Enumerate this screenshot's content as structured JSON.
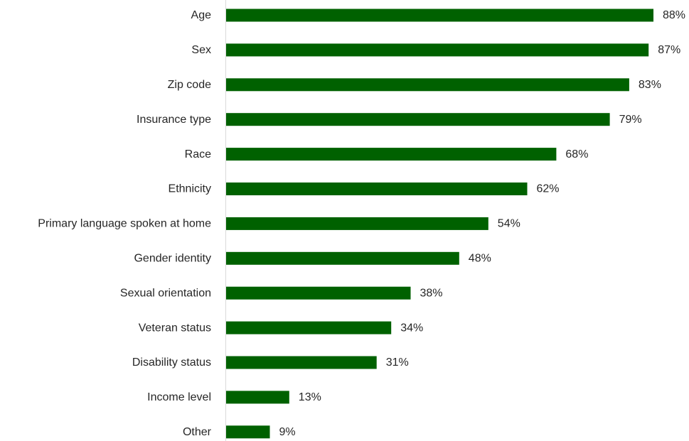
{
  "chart_data": {
    "type": "bar",
    "orientation": "horizontal",
    "categories": [
      "Age",
      "Sex",
      "Zip code",
      "Insurance type",
      "Race",
      "Ethnicity",
      "Primary language spoken at home",
      "Gender identity",
      "Sexual orientation",
      "Veteran status",
      "Disability status",
      "Income level",
      "Other"
    ],
    "values": [
      88,
      87,
      83,
      79,
      68,
      62,
      54,
      48,
      38,
      34,
      31,
      13,
      9
    ],
    "value_labels": [
      "88%",
      "87%",
      "83%",
      "79%",
      "68%",
      "62%",
      "54%",
      "48%",
      "38%",
      "34%",
      "31%",
      "13%",
      "9%"
    ],
    "unit": "%",
    "title": "",
    "xlabel": "",
    "ylabel": "",
    "xlim": [
      0,
      100
    ],
    "grid": false,
    "legend": "none",
    "bar_color": "#006100",
    "axis_color": "#d9d9d9"
  }
}
